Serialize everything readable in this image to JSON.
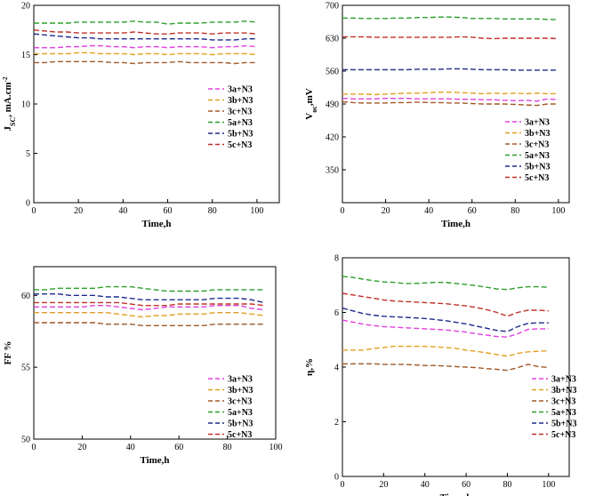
{
  "colors": {
    "3a+N3": "#e040e0",
    "3b+N3": "#e0a020",
    "3c+N3": "#a05a28",
    "5a+N3": "#2ca02c",
    "5b+N3": "#1f2a8c",
    "5c+N3": "#c0302a"
  },
  "chart_data": [
    {
      "type": "line",
      "id": "jsc",
      "xlabel": "Time,h",
      "ylabel": "J_SC, mA.cm^-2",
      "ylabel_main": "J",
      "ylabel_sub": "SC",
      "ylabel_rest": ", mA.cm",
      "ylabel_sup": "-2",
      "xlim": [
        0,
        110
      ],
      "ylim": [
        0,
        20
      ],
      "xticks": [
        0,
        20,
        40,
        60,
        80,
        100
      ],
      "yticks": [
        0,
        5,
        10,
        15,
        20
      ],
      "xtick_labels": [
        "0",
        "20",
        "40",
        "60",
        "80",
        "100"
      ],
      "ytick_labels": [
        "0",
        "5",
        "10",
        "15",
        "20"
      ],
      "legend_position": "middle-right",
      "x": [
        0,
        5,
        10,
        15,
        20,
        25,
        30,
        35,
        40,
        45,
        50,
        55,
        60,
        65,
        70,
        75,
        80,
        85,
        90,
        95,
        100
      ],
      "series": [
        {
          "name": "3a+N3",
          "values": [
            15.7,
            15.7,
            15.7,
            15.8,
            15.8,
            15.9,
            15.9,
            15.8,
            15.8,
            15.7,
            15.8,
            15.8,
            15.7,
            15.8,
            15.8,
            15.8,
            15.7,
            15.8,
            15.8,
            15.9,
            15.8
          ]
        },
        {
          "name": "3b+N3",
          "values": [
            15.1,
            15.1,
            15.1,
            15.1,
            15.2,
            15.2,
            15.1,
            15.1,
            15.1,
            15.0,
            15.1,
            15.1,
            15.0,
            15.1,
            15.1,
            15.1,
            15.0,
            15.1,
            15.1,
            15.1,
            15.0
          ]
        },
        {
          "name": "3c+N3",
          "values": [
            14.2,
            14.2,
            14.3,
            14.3,
            14.3,
            14.3,
            14.3,
            14.2,
            14.2,
            14.1,
            14.2,
            14.2,
            14.2,
            14.3,
            14.2,
            14.2,
            14.2,
            14.2,
            14.1,
            14.2,
            14.2
          ]
        },
        {
          "name": "5a+N3",
          "values": [
            18.2,
            18.2,
            18.2,
            18.2,
            18.3,
            18.3,
            18.3,
            18.3,
            18.3,
            18.4,
            18.3,
            18.3,
            18.1,
            18.2,
            18.2,
            18.2,
            18.3,
            18.3,
            18.3,
            18.4,
            18.3
          ]
        },
        {
          "name": "5b+N3",
          "values": [
            17.1,
            17.0,
            16.9,
            16.8,
            16.7,
            16.7,
            16.6,
            16.6,
            16.6,
            16.6,
            16.6,
            16.6,
            16.6,
            16.6,
            16.6,
            16.6,
            16.5,
            16.5,
            16.5,
            16.6,
            16.6
          ]
        },
        {
          "name": "5c+N3",
          "values": [
            17.5,
            17.4,
            17.3,
            17.3,
            17.2,
            17.2,
            17.2,
            17.2,
            17.2,
            17.3,
            17.2,
            17.1,
            17.1,
            17.2,
            17.2,
            17.2,
            17.1,
            17.2,
            17.2,
            17.2,
            17.1
          ]
        }
      ]
    },
    {
      "type": "line",
      "id": "voc",
      "xlabel": "Time,h",
      "ylabel": "Voc,mV",
      "ylabel_main": "V",
      "ylabel_sub": "oc",
      "ylabel_rest": ",mV",
      "ylabel_sup": "",
      "xlim": [
        0,
        105
      ],
      "ylim": [
        280,
        700
      ],
      "xticks": [
        0,
        20,
        40,
        60,
        80,
        100
      ],
      "yticks": [
        350,
        420,
        490,
        560,
        630,
        700
      ],
      "xtick_labels": [
        "0",
        "20",
        "40",
        "60",
        "80",
        "100"
      ],
      "ytick_labels": [
        "350",
        "420",
        "490",
        "560",
        "630",
        "700"
      ],
      "legend_position": "bottom-right",
      "x": [
        0,
        5,
        10,
        15,
        20,
        25,
        30,
        35,
        40,
        45,
        50,
        55,
        60,
        65,
        70,
        75,
        80,
        85,
        90,
        95,
        100
      ],
      "series": [
        {
          "name": "3a+N3",
          "values": [
            502,
            501,
            501,
            501,
            502,
            502,
            502,
            501,
            501,
            501,
            501,
            500,
            500,
            499,
            499,
            498,
            497,
            498,
            496,
            501,
            499
          ]
        },
        {
          "name": "3b+N3",
          "values": [
            511,
            511,
            511,
            510,
            511,
            512,
            513,
            513,
            514,
            515,
            515,
            514,
            513,
            512,
            513,
            512,
            513,
            512,
            513,
            512,
            512
          ]
        },
        {
          "name": "3c+N3",
          "values": [
            495,
            493,
            492,
            492,
            492,
            493,
            493,
            494,
            493,
            493,
            492,
            492,
            491,
            490,
            490,
            490,
            489,
            488,
            487,
            490,
            490
          ]
        },
        {
          "name": "5a+N3",
          "values": [
            673,
            673,
            672,
            672,
            672,
            673,
            673,
            674,
            674,
            675,
            675,
            674,
            672,
            672,
            672,
            671,
            671,
            671,
            671,
            670,
            670
          ]
        },
        {
          "name": "5b+N3",
          "values": [
            563,
            563,
            563,
            563,
            563,
            563,
            563,
            564,
            564,
            564,
            565,
            565,
            564,
            563,
            563,
            563,
            562,
            562,
            562,
            562,
            562
          ]
        },
        {
          "name": "5c+N3",
          "values": [
            633,
            633,
            633,
            632,
            632,
            632,
            632,
            632,
            632,
            632,
            632,
            633,
            632,
            630,
            629,
            630,
            630,
            630,
            630,
            630,
            629
          ]
        }
      ]
    },
    {
      "type": "line",
      "id": "ff",
      "xlabel": "Time,h",
      "ylabel": "FF %",
      "ylabel_main": "FF %",
      "ylabel_sub": "",
      "ylabel_rest": "",
      "ylabel_sup": "",
      "xlim": [
        0,
        100
      ],
      "ylim": [
        50,
        62
      ],
      "xticks": [
        0,
        20,
        40,
        60,
        80,
        100
      ],
      "yticks": [
        50,
        55,
        60
      ],
      "xtick_labels": [
        "0",
        "20",
        "40",
        "60",
        "80",
        "100"
      ],
      "ytick_labels": [
        "50",
        "55",
        "60"
      ],
      "legend_position": "bottom-right",
      "x": [
        0,
        5,
        10,
        15,
        20,
        25,
        30,
        35,
        40,
        45,
        50,
        55,
        60,
        65,
        70,
        75,
        80,
        85,
        90,
        95
      ],
      "series": [
        {
          "name": "3a+N3",
          "values": [
            59.2,
            59.2,
            59.2,
            59.2,
            59.2,
            59.3,
            59.3,
            59.2,
            59.1,
            59.0,
            59.1,
            59.2,
            59.2,
            59.2,
            59.2,
            59.3,
            59.3,
            59.3,
            59.1,
            59.0
          ]
        },
        {
          "name": "3b+N3",
          "values": [
            58.8,
            58.8,
            58.8,
            58.8,
            58.8,
            58.8,
            58.8,
            58.7,
            58.6,
            58.5,
            58.6,
            58.6,
            58.7,
            58.7,
            58.7,
            58.8,
            58.8,
            58.8,
            58.7,
            58.6
          ]
        },
        {
          "name": "3c+N3",
          "values": [
            58.1,
            58.1,
            58.1,
            58.1,
            58.1,
            58.1,
            58.0,
            58.0,
            58.0,
            57.9,
            57.9,
            57.9,
            57.9,
            57.9,
            57.9,
            58.0,
            58.0,
            58.0,
            58.0,
            58.0
          ]
        },
        {
          "name": "5a+N3",
          "values": [
            60.4,
            60.4,
            60.5,
            60.5,
            60.5,
            60.5,
            60.6,
            60.6,
            60.6,
            60.5,
            60.4,
            60.3,
            60.3,
            60.3,
            60.3,
            60.4,
            60.4,
            60.4,
            60.4,
            60.4
          ]
        },
        {
          "name": "5b+N3",
          "values": [
            60.1,
            60.1,
            60.1,
            60.0,
            60.0,
            60.0,
            59.9,
            59.9,
            59.8,
            59.7,
            59.7,
            59.7,
            59.7,
            59.7,
            59.7,
            59.8,
            59.8,
            59.8,
            59.7,
            59.5
          ]
        },
        {
          "name": "5c+N3",
          "values": [
            59.5,
            59.5,
            59.5,
            59.5,
            59.5,
            59.5,
            59.5,
            59.5,
            59.4,
            59.3,
            59.3,
            59.3,
            59.4,
            59.4,
            59.4,
            59.4,
            59.4,
            59.4,
            59.4,
            59.3
          ]
        }
      ]
    },
    {
      "type": "line",
      "id": "eta",
      "xlabel": "Time, h",
      "ylabel": "η,%",
      "ylabel_main": "η,%",
      "ylabel_sub": "",
      "ylabel_rest": "",
      "ylabel_sup": "",
      "xlim": [
        0,
        110
      ],
      "ylim": [
        0,
        8
      ],
      "xticks": [
        0,
        20,
        40,
        60,
        80,
        100
      ],
      "yticks": [
        0,
        2,
        4,
        6,
        8
      ],
      "xtick_labels": [
        "0",
        "20",
        "40",
        "60",
        "80",
        "100"
      ],
      "ytick_labels": [
        "0",
        "2",
        "4",
        "6",
        "8"
      ],
      "legend_position": "bottom-right",
      "x": [
        0,
        5,
        10,
        15,
        20,
        25,
        30,
        35,
        40,
        45,
        50,
        55,
        60,
        65,
        70,
        75,
        80,
        85,
        90,
        95,
        100
      ],
      "series": [
        {
          "name": "3a+N3",
          "values": [
            5.72,
            5.65,
            5.57,
            5.52,
            5.48,
            5.46,
            5.44,
            5.42,
            5.4,
            5.38,
            5.36,
            5.32,
            5.28,
            5.22,
            5.17,
            5.12,
            5.1,
            5.22,
            5.38,
            5.4,
            5.4
          ]
        },
        {
          "name": "3b+N3",
          "values": [
            4.62,
            4.62,
            4.62,
            4.68,
            4.72,
            4.76,
            4.76,
            4.76,
            4.76,
            4.74,
            4.72,
            4.68,
            4.62,
            4.58,
            4.52,
            4.46,
            4.4,
            4.5,
            4.56,
            4.58,
            4.6
          ]
        },
        {
          "name": "3c+N3",
          "values": [
            4.12,
            4.12,
            4.12,
            4.12,
            4.1,
            4.1,
            4.1,
            4.08,
            4.06,
            4.06,
            4.04,
            4.02,
            4.0,
            3.98,
            3.94,
            3.92,
            3.88,
            3.98,
            4.1,
            4.02,
            3.98
          ]
        },
        {
          "name": "5a+N3",
          "values": [
            7.32,
            7.28,
            7.22,
            7.16,
            7.12,
            7.1,
            7.06,
            7.06,
            7.08,
            7.1,
            7.1,
            7.06,
            7.02,
            6.98,
            6.92,
            6.86,
            6.84,
            6.9,
            6.94,
            6.94,
            6.92
          ]
        },
        {
          "name": "5b+N3",
          "values": [
            6.16,
            6.06,
            5.96,
            5.9,
            5.86,
            5.84,
            5.82,
            5.8,
            5.78,
            5.74,
            5.7,
            5.64,
            5.58,
            5.5,
            5.42,
            5.34,
            5.3,
            5.48,
            5.6,
            5.62,
            5.62
          ]
        },
        {
          "name": "5c+N3",
          "values": [
            6.7,
            6.64,
            6.58,
            6.52,
            6.46,
            6.42,
            6.4,
            6.38,
            6.36,
            6.34,
            6.32,
            6.28,
            6.24,
            6.18,
            6.1,
            6.0,
            5.86,
            6.0,
            6.08,
            6.08,
            6.06
          ]
        }
      ]
    }
  ]
}
